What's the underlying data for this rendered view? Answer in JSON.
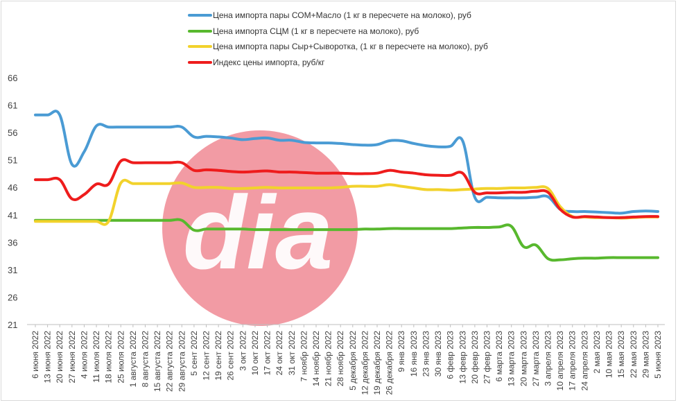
{
  "chart_data": {
    "type": "line",
    "title": "",
    "xlabel": "",
    "ylabel": "",
    "ylim": [
      21,
      66
    ],
    "yticks": [
      21,
      26,
      31,
      36,
      41,
      46,
      51,
      56,
      61,
      66
    ],
    "grid": false,
    "legend_position": "top",
    "watermark": "dia",
    "categories": [
      "6 июня 2022",
      "13 июня 2022",
      "20 июня 2022",
      "27 июня 2022",
      "4 июля 2022",
      "11 июля 2022",
      "18 июля 2022",
      "25 июля 2022",
      "1 августа 2022",
      "8 августа 2022",
      "15 августа 2022",
      "22 августа 2022",
      "29 августа 2022",
      "5 сент 2022",
      "12 сент 2022",
      "19 сент 2022",
      "26 сент 2022",
      "3 окт 2022",
      "10 окт 2022",
      "17 окт 2022",
      "24 окт 2022",
      "31 окт 2022",
      "7 ноябр 2022",
      "14 ноябр 2022",
      "21 ноябр 2022",
      "28 ноябр 2022",
      "5 декабря 2022",
      "12 декабря 2022",
      "19 декабря 2022",
      "26 декабря 2022",
      "9 янв 2023",
      "16 янв 2023",
      "23 янв 2023",
      "30 янв 2023",
      "6 февр 2023",
      "13 февр 2023",
      "20 февр 2023",
      "27 февр 2023",
      "6 марта 2023",
      "13 марта 2023",
      "20 марта 2023",
      "27 марта 2023",
      "3 апреля 2023",
      "10 апреля 2023",
      "17 апреля 2023",
      "24 апреля 2023",
      "2 мая 2023",
      "10 мая 2023",
      "15 мая 2023",
      "22 мая 2023",
      "29 мая 2023",
      "5 июня 2023"
    ],
    "series": [
      {
        "name": "Цена импорта пары СОМ+Масло  (1 кг в пересчете на молоко), руб",
        "color": "#4a9bd4",
        "values": [
          59.2,
          59.2,
          59.2,
          50.2,
          52.5,
          57.2,
          57.0,
          57.0,
          57.0,
          57.0,
          57.0,
          57.0,
          57.0,
          55.2,
          55.3,
          55.2,
          55.0,
          54.7,
          54.9,
          55.0,
          54.6,
          54.6,
          54.2,
          54.1,
          54.1,
          54.0,
          53.8,
          53.7,
          53.8,
          54.5,
          54.5,
          54.0,
          53.6,
          53.4,
          53.5,
          54.5,
          44.2,
          44.2,
          44.1,
          44.1,
          44.1,
          44.2,
          44.3,
          42.0,
          41.6,
          41.6,
          41.5,
          41.4,
          41.3,
          41.6,
          41.7,
          41.6
        ]
      },
      {
        "name": "Цена импорта СЦМ (1 кг в пересчете на молоко), руб",
        "color": "#58b82e",
        "values": [
          40.0,
          40.0,
          40.0,
          40.0,
          40.0,
          40.0,
          40.0,
          40.0,
          40.0,
          40.0,
          40.0,
          40.0,
          40.0,
          38.2,
          38.4,
          38.4,
          38.4,
          38.4,
          38.3,
          38.3,
          38.3,
          38.3,
          38.3,
          38.3,
          38.3,
          38.3,
          38.3,
          38.4,
          38.4,
          38.5,
          38.5,
          38.5,
          38.5,
          38.5,
          38.5,
          38.6,
          38.7,
          38.7,
          38.8,
          38.9,
          35.2,
          35.5,
          33.0,
          32.8,
          33.0,
          33.1,
          33.1,
          33.2,
          33.2,
          33.2,
          33.2,
          33.2
        ]
      },
      {
        "name": "Цена импорта пары Сыр+Сыворотка, (1 кг в пересчете на молоко), руб",
        "color": "#f2d22c",
        "values": [
          39.8,
          39.8,
          39.8,
          39.8,
          39.8,
          39.8,
          39.8,
          46.8,
          46.7,
          46.7,
          46.7,
          46.7,
          46.8,
          46.0,
          46.0,
          46.0,
          45.8,
          45.8,
          45.9,
          46.0,
          45.9,
          45.9,
          45.9,
          45.9,
          45.9,
          46.0,
          46.2,
          46.2,
          46.2,
          46.5,
          46.2,
          45.9,
          45.6,
          45.6,
          45.5,
          45.6,
          45.7,
          45.8,
          45.8,
          45.9,
          45.9,
          46.0,
          45.8,
          42.5,
          40.7,
          40.6,
          40.5,
          40.5,
          40.4,
          40.5,
          40.6,
          40.6
        ]
      },
      {
        "name": "Индекс цены импорта, руб/кг",
        "color": "#ee1c1c",
        "values": [
          47.4,
          47.4,
          47.4,
          43.9,
          44.7,
          46.6,
          46.6,
          50.8,
          50.5,
          50.5,
          50.5,
          50.5,
          50.5,
          49.1,
          49.2,
          49.1,
          48.9,
          48.8,
          48.9,
          49.0,
          48.8,
          48.8,
          48.7,
          48.6,
          48.6,
          48.6,
          48.5,
          48.5,
          48.6,
          49.1,
          48.8,
          48.6,
          48.3,
          48.2,
          48.2,
          48.6,
          45.1,
          45.0,
          45.0,
          45.1,
          45.1,
          45.3,
          45.1,
          42.0,
          40.6,
          40.7,
          40.6,
          40.5,
          40.5,
          40.6,
          40.7,
          40.7
        ]
      }
    ]
  }
}
